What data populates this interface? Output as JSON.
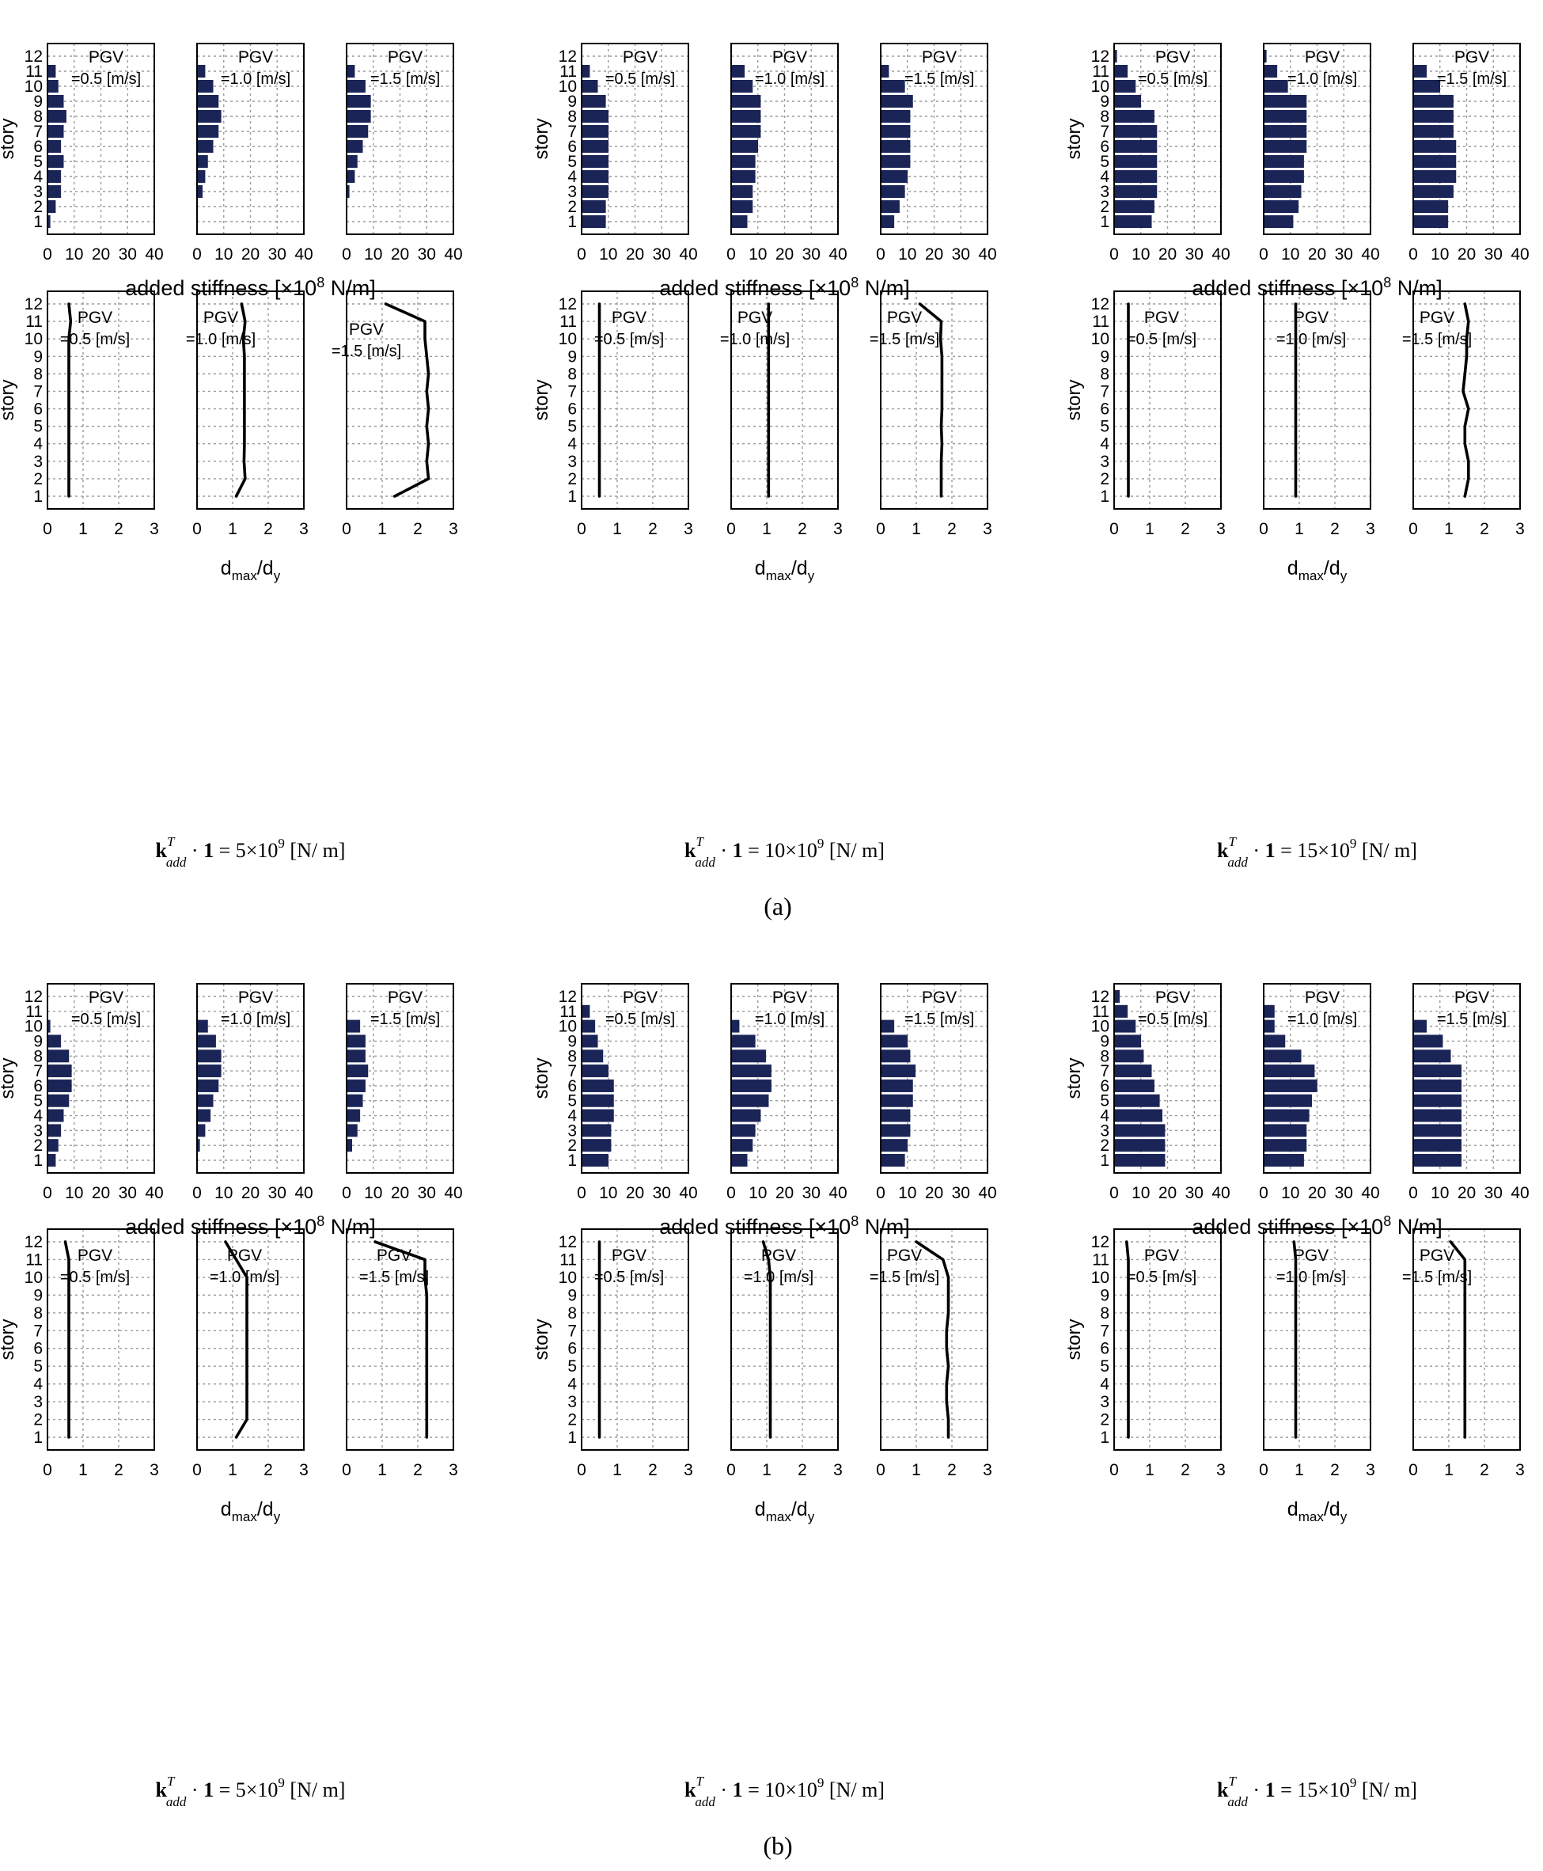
{
  "panel_labels": [
    "(a)",
    "(b)"
  ],
  "chart_data": [
    {
      "panel": "(a)",
      "type": "bar",
      "orientation": "horizontal",
      "ylabel": "story",
      "xlabel": "added stiffness [×10⁸ N/m]",
      "xlim": [
        0,
        40
      ],
      "xticks": [
        0,
        10,
        20,
        30,
        40
      ],
      "yticks": [
        1,
        2,
        3,
        4,
        5,
        6,
        7,
        8,
        9,
        10,
        11,
        12
      ],
      "grid": true,
      "categories": [
        1,
        2,
        3,
        4,
        5,
        6,
        7,
        8,
        9,
        10,
        11,
        12
      ],
      "groups": [
        {
          "caption": "k_add^T · 1 = 5×10^9 [N/ m]",
          "series": [
            {
              "name": "PGV =0.5 [m/s]",
              "values": [
                1,
                3,
                5,
                5,
                6,
                5,
                6,
                7,
                6,
                4,
                3,
                0
              ]
            },
            {
              "name": "PGV =1.0 [m/s]",
              "values": [
                0,
                0,
                2,
                3,
                4,
                6,
                8,
                9,
                8,
                6,
                3,
                0
              ]
            },
            {
              "name": "PGV =1.5 [m/s]",
              "values": [
                0,
                0,
                1,
                3,
                4,
                6,
                8,
                9,
                9,
                7,
                3,
                0
              ]
            }
          ]
        },
        {
          "caption": "k_add^T · 1 = 10×10^9 [N/ m]",
          "series": [
            {
              "name": "PGV =0.5 [m/s]",
              "values": [
                9,
                9,
                10,
                10,
                10,
                10,
                10,
                10,
                9,
                6,
                3,
                0
              ]
            },
            {
              "name": "PGV =1.0 [m/s]",
              "values": [
                6,
                8,
                8,
                9,
                9,
                10,
                11,
                11,
                11,
                8,
                5,
                0
              ]
            },
            {
              "name": "PGV =1.5 [m/s]",
              "values": [
                5,
                7,
                9,
                10,
                11,
                11,
                11,
                11,
                12,
                9,
                3,
                0
              ]
            }
          ]
        },
        {
          "caption": "k_add^T · 1 = 15×10^9 [N/ m]",
          "series": [
            {
              "name": "PGV =0.5 [m/s]",
              "values": [
                14,
                15,
                16,
                16,
                16,
                16,
                16,
                15,
                10,
                8,
                5,
                1
              ]
            },
            {
              "name": "PGV =1.0 [m/s]",
              "values": [
                11,
                13,
                14,
                15,
                15,
                16,
                16,
                16,
                16,
                9,
                5,
                1
              ]
            },
            {
              "name": "PGV =1.5 [m/s]",
              "values": [
                13,
                13,
                15,
                16,
                16,
                16,
                15,
                15,
                15,
                10,
                5,
                0
              ]
            }
          ]
        }
      ]
    },
    {
      "panel": "(a)",
      "type": "line",
      "orientation": "profile",
      "ylabel": "story",
      "xlabel": "d_max/d_y",
      "xlim": [
        0,
        3
      ],
      "xticks": [
        0,
        1,
        2,
        3
      ],
      "yticks": [
        1,
        2,
        3,
        4,
        5,
        6,
        7,
        8,
        9,
        10,
        11,
        12
      ],
      "grid": true,
      "stories": [
        1,
        2,
        3,
        4,
        5,
        6,
        7,
        8,
        9,
        10,
        11,
        12
      ],
      "groups": [
        {
          "caption": "k_add^T · 1 = 5×10^9 [N/ m]",
          "series": [
            {
              "name": "PGV =0.5 [m/s]",
              "values": [
                0.6,
                0.6,
                0.6,
                0.6,
                0.6,
                0.6,
                0.6,
                0.6,
                0.6,
                0.6,
                0.65,
                0.6
              ]
            },
            {
              "name": "PGV =1.0 [m/s]",
              "values": [
                1.1,
                1.35,
                1.32,
                1.33,
                1.33,
                1.33,
                1.33,
                1.33,
                1.33,
                1.3,
                1.35,
                1.25
              ]
            },
            {
              "name": "PGV =1.5 [m/s]",
              "values": [
                1.35,
                2.3,
                2.25,
                2.3,
                2.25,
                2.3,
                2.25,
                2.3,
                2.25,
                2.2,
                2.2,
                1.1
              ]
            }
          ]
        },
        {
          "caption": "k_add^T · 1 = 10×10^9 [N/ m]",
          "series": [
            {
              "name": "PGV =0.5 [m/s]",
              "values": [
                0.5,
                0.5,
                0.5,
                0.5,
                0.5,
                0.5,
                0.5,
                0.5,
                0.5,
                0.5,
                0.5,
                0.5
              ]
            },
            {
              "name": "PGV =1.0 [m/s]",
              "values": [
                1.05,
                1.05,
                1.05,
                1.05,
                1.05,
                1.05,
                1.05,
                1.05,
                1.05,
                1.05,
                1.05,
                1.05
              ]
            },
            {
              "name": "PGV =1.5 [m/s]",
              "values": [
                1.7,
                1.7,
                1.7,
                1.72,
                1.7,
                1.72,
                1.72,
                1.72,
                1.72,
                1.68,
                1.7,
                1.1
              ]
            }
          ]
        },
        {
          "caption": "k_add^T · 1 = 15×10^9 [N/ m]",
          "series": [
            {
              "name": "PGV =0.5 [m/s]",
              "values": [
                0.4,
                0.4,
                0.4,
                0.4,
                0.4,
                0.4,
                0.4,
                0.4,
                0.4,
                0.4,
                0.4,
                0.4
              ]
            },
            {
              "name": "PGV =1.0 [m/s]",
              "values": [
                0.9,
                0.9,
                0.9,
                0.9,
                0.9,
                0.9,
                0.9,
                0.9,
                0.9,
                0.9,
                0.9,
                0.9
              ]
            },
            {
              "name": "PGV =1.5 [m/s]",
              "values": [
                1.45,
                1.55,
                1.55,
                1.45,
                1.45,
                1.55,
                1.4,
                1.45,
                1.5,
                1.5,
                1.55,
                1.45
              ]
            }
          ]
        }
      ]
    },
    {
      "panel": "(b)",
      "type": "bar",
      "orientation": "horizontal",
      "ylabel": "story",
      "xlabel": "added stiffness [×10⁸ N/m]",
      "xlim": [
        0,
        40
      ],
      "xticks": [
        0,
        10,
        20,
        30,
        40
      ],
      "yticks": [
        1,
        2,
        3,
        4,
        5,
        6,
        7,
        8,
        9,
        10,
        11,
        12
      ],
      "grid": true,
      "categories": [
        1,
        2,
        3,
        4,
        5,
        6,
        7,
        8,
        9,
        10,
        11,
        12
      ],
      "groups": [
        {
          "caption": "k_add^T · 1 = 5×10^9 [N/ m]",
          "series": [
            {
              "name": "PGV =0.5 [m/s]",
              "values": [
                3,
                4,
                5,
                6,
                8,
                9,
                9,
                8,
                5,
                1,
                0,
                0
              ]
            },
            {
              "name": "PGV =1.0 [m/s]",
              "values": [
                0,
                1,
                3,
                5,
                6,
                8,
                9,
                9,
                7,
                4,
                0,
                0
              ]
            },
            {
              "name": "PGV =1.5 [m/s]",
              "values": [
                0,
                2,
                4,
                5,
                6,
                7,
                8,
                7,
                7,
                5,
                0,
                0
              ]
            }
          ]
        },
        {
          "caption": "k_add^T · 1 = 10×10^9 [N/ m]",
          "series": [
            {
              "name": "PGV =0.5 [m/s]",
              "values": [
                10,
                11,
                11,
                12,
                12,
                12,
                10,
                8,
                6,
                5,
                3,
                0
              ]
            },
            {
              "name": "PGV =1.0 [m/s]",
              "values": [
                6,
                8,
                9,
                11,
                14,
                15,
                15,
                13,
                9,
                3,
                0,
                0
              ]
            },
            {
              "name": "PGV =1.5 [m/s]",
              "values": [
                9,
                10,
                11,
                11,
                12,
                12,
                13,
                11,
                10,
                5,
                0,
                0
              ]
            }
          ]
        },
        {
          "caption": "k_add^T · 1 = 15×10^9 [N/ m]",
          "series": [
            {
              "name": "PGV =0.5 [m/s]",
              "values": [
                19,
                19,
                19,
                18,
                17,
                15,
                14,
                11,
                10,
                8,
                5,
                2
              ]
            },
            {
              "name": "PGV =1.0 [m/s]",
              "values": [
                15,
                16,
                16,
                17,
                18,
                20,
                19,
                14,
                8,
                4,
                4,
                0
              ]
            },
            {
              "name": "PGV =1.5 [m/s]",
              "values": [
                18,
                18,
                18,
                18,
                18,
                18,
                18,
                14,
                11,
                5,
                0,
                0
              ]
            }
          ]
        }
      ]
    },
    {
      "panel": "(b)",
      "type": "line",
      "orientation": "profile",
      "ylabel": "story",
      "xlabel": "d_max/d_y",
      "xlim": [
        0,
        3
      ],
      "xticks": [
        0,
        1,
        2,
        3
      ],
      "yticks": [
        1,
        2,
        3,
        4,
        5,
        6,
        7,
        8,
        9,
        10,
        11,
        12
      ],
      "grid": true,
      "stories": [
        1,
        2,
        3,
        4,
        5,
        6,
        7,
        8,
        9,
        10,
        11,
        12
      ],
      "groups": [
        {
          "caption": "k_add^T · 1 = 5×10^9 [N/ m]",
          "series": [
            {
              "name": "PGV =0.5 [m/s]",
              "values": [
                0.6,
                0.6,
                0.6,
                0.6,
                0.6,
                0.6,
                0.6,
                0.6,
                0.6,
                0.6,
                0.6,
                0.5
              ]
            },
            {
              "name": "PGV =1.0 [m/s]",
              "values": [
                1.1,
                1.4,
                1.4,
                1.4,
                1.4,
                1.4,
                1.4,
                1.4,
                1.4,
                1.4,
                1.1,
                0.8
              ]
            },
            {
              "name": "PGV =1.5 [m/s]",
              "values": [
                2.25,
                2.25,
                2.25,
                2.25,
                2.25,
                2.25,
                2.25,
                2.25,
                2.25,
                2.2,
                2.2,
                0.8
              ]
            }
          ]
        },
        {
          "caption": "k_add^T · 1 = 10×10^9 [N/ m]",
          "series": [
            {
              "name": "PGV =0.5 [m/s]",
              "values": [
                0.5,
                0.5,
                0.5,
                0.5,
                0.5,
                0.5,
                0.5,
                0.5,
                0.5,
                0.5,
                0.5,
                0.5
              ]
            },
            {
              "name": "PGV =1.0 [m/s]",
              "values": [
                1.1,
                1.1,
                1.1,
                1.1,
                1.1,
                1.1,
                1.1,
                1.1,
                1.1,
                1.1,
                1.05,
                0.9
              ]
            },
            {
              "name": "PGV =1.5 [m/s]",
              "values": [
                1.9,
                1.9,
                1.85,
                1.85,
                1.9,
                1.85,
                1.85,
                1.9,
                1.9,
                1.9,
                1.75,
                1.0
              ]
            }
          ]
        },
        {
          "caption": "k_add^T · 1 = 15×10^9 [N/ m]",
          "series": [
            {
              "name": "PGV =0.5 [m/s]",
              "values": [
                0.4,
                0.4,
                0.4,
                0.4,
                0.4,
                0.4,
                0.4,
                0.4,
                0.4,
                0.4,
                0.4,
                0.35
              ]
            },
            {
              "name": "PGV =1.0 [m/s]",
              "values": [
                0.9,
                0.9,
                0.9,
                0.9,
                0.9,
                0.9,
                0.9,
                0.9,
                0.9,
                0.9,
                0.9,
                0.85
              ]
            },
            {
              "name": "PGV =1.5 [m/s]",
              "values": [
                1.45,
                1.45,
                1.45,
                1.45,
                1.45,
                1.45,
                1.45,
                1.45,
                1.45,
                1.45,
                1.45,
                1.05
              ]
            }
          ]
        }
      ]
    }
  ]
}
